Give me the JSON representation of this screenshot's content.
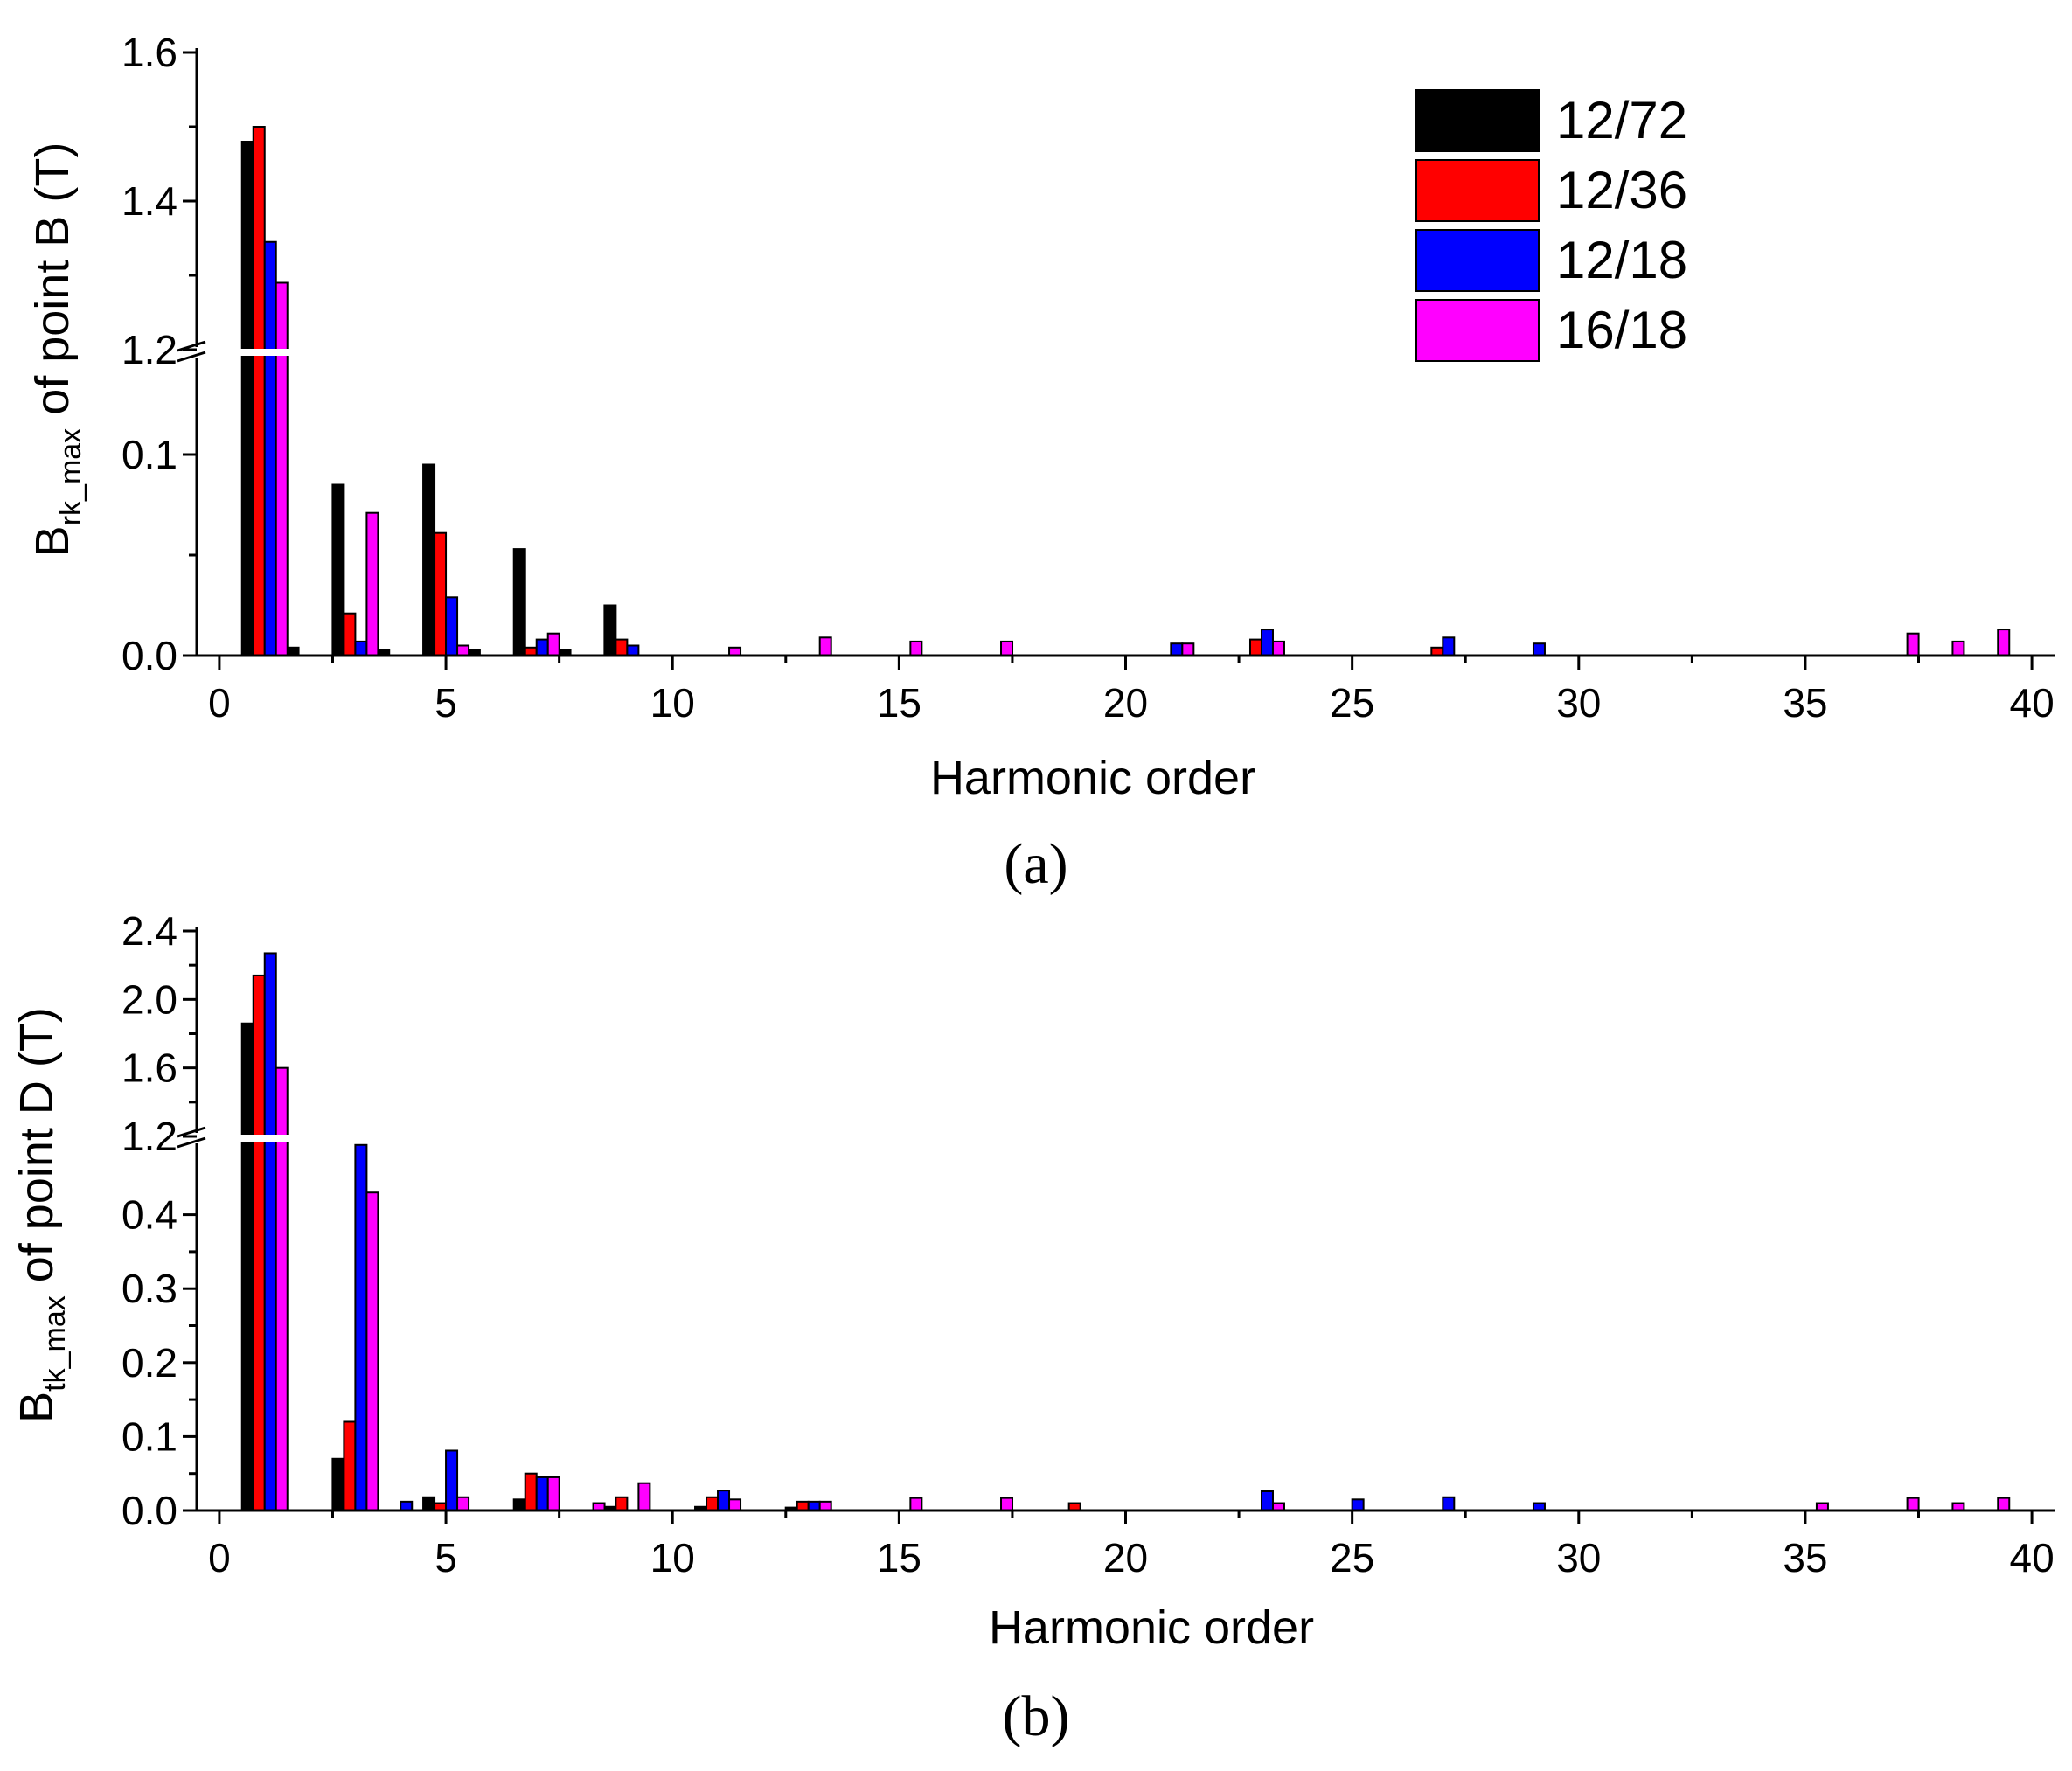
{
  "chart_data": [
    {
      "type": "bar",
      "panel_label": "(a)",
      "xlabel": "Harmonic order",
      "ylabel_main": "B",
      "ylabel_sub": "rk_max",
      "ylabel_rest": " of point B (T)",
      "xlim": [
        -0.5,
        40.5
      ],
      "xticks": [
        0,
        5,
        10,
        15,
        20,
        25,
        30,
        35,
        40
      ],
      "y_axis_break": {
        "lower": {
          "range": [
            0,
            0.15
          ],
          "ticks": [
            "0.0",
            "0.1"
          ],
          "tick_values": [
            0,
            0.1
          ]
        },
        "upper": {
          "range": [
            1.2,
            1.6
          ],
          "ticks": [
            "1.2",
            "1.4",
            "1.6"
          ],
          "tick_values": [
            1.2,
            1.4,
            1.6
          ]
        }
      },
      "legend": {
        "position": "top-right"
      },
      "series": [
        {
          "name": "12/72",
          "color": "#000000",
          "x": [
            1,
            2,
            3,
            4,
            5,
            6,
            7,
            8,
            9
          ],
          "values": [
            1.48,
            0.004,
            0.085,
            0.003,
            0.095,
            0.003,
            0.053,
            0.003,
            0.025
          ]
        },
        {
          "name": "12/36",
          "color": "#ff0000",
          "x": [
            1,
            3,
            5,
            7,
            9,
            23,
            27
          ],
          "values": [
            1.5,
            0.021,
            0.061,
            0.004,
            0.008,
            0.008,
            0.004
          ]
        },
        {
          "name": "12/18",
          "color": "#0000ff",
          "x": [
            1,
            3,
            5,
            7,
            9,
            21,
            23,
            27,
            29
          ],
          "values": [
            1.345,
            0.007,
            0.029,
            0.008,
            0.005,
            0.006,
            0.013,
            0.009,
            0.006
          ]
        },
        {
          "name": "16/18",
          "color": "#ff00ff",
          "x": [
            1,
            3,
            5,
            7,
            11,
            13,
            15,
            17,
            21,
            23,
            37,
            38,
            39
          ],
          "values": [
            1.29,
            0.071,
            0.005,
            0.011,
            0.004,
            0.009,
            0.007,
            0.007,
            0.006,
            0.007,
            0.011,
            0.007,
            0.013
          ]
        }
      ]
    },
    {
      "type": "bar",
      "panel_label": "(b)",
      "xlabel": "Harmonic order",
      "ylabel_main": "B",
      "ylabel_sub": "tk_max",
      "ylabel_rest": " of point D (T)",
      "xlim": [
        -0.5,
        40.5
      ],
      "xticks": [
        0,
        5,
        10,
        15,
        20,
        25,
        30,
        35,
        40
      ],
      "y_axis_break": {
        "lower": {
          "range": [
            0,
            0.5
          ],
          "ticks": [
            "0.0",
            "0.1",
            "0.2",
            "0.3",
            "0.4"
          ],
          "tick_values": [
            0,
            0.1,
            0.2,
            0.3,
            0.4
          ]
        },
        "upper": {
          "range": [
            1.2,
            2.4
          ],
          "ticks": [
            "1.2",
            "1.6",
            "2.0",
            "2.4"
          ],
          "tick_values": [
            1.2,
            1.6,
            2.0,
            2.4
          ]
        }
      },
      "series": [
        {
          "name": "12/72",
          "color": "#000000",
          "x": [
            1,
            3,
            5,
            7,
            9,
            11,
            13
          ],
          "values": [
            1.86,
            0.07,
            0.018,
            0.015,
            0.005,
            0.005,
            0.004
          ]
        },
        {
          "name": "12/36",
          "color": "#ff0000",
          "x": [
            1,
            3,
            5,
            7,
            9,
            11,
            13,
            19
          ],
          "values": [
            2.14,
            0.12,
            0.01,
            0.05,
            0.018,
            0.018,
            0.012,
            0.01
          ]
        },
        {
          "name": "12/18",
          "color": "#0000ff",
          "x": [
            1,
            3,
            4,
            5,
            7,
            11,
            13,
            23,
            25,
            27,
            29
          ],
          "values": [
            2.27,
            1.15,
            0.012,
            0.081,
            0.045,
            0.027,
            0.012,
            0.026,
            0.015,
            0.018,
            0.01
          ]
        },
        {
          "name": "16/18",
          "color": "#ff00ff",
          "x": [
            1,
            3,
            5,
            7,
            8,
            9,
            11,
            13,
            15,
            17,
            23,
            35,
            37,
            38,
            39
          ],
          "values": [
            1.6,
            0.43,
            0.018,
            0.045,
            0.01,
            0.037,
            0.015,
            0.012,
            0.017,
            0.017,
            0.01,
            0.01,
            0.017,
            0.01,
            0.017
          ]
        }
      ]
    }
  ]
}
